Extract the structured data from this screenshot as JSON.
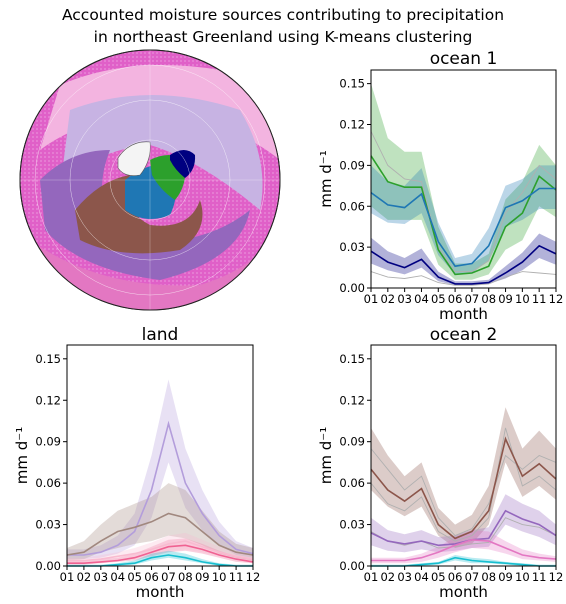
{
  "figure": {
    "title_line1": "Accounted moisture sources contributing to precipitation",
    "title_line2": "in northeast Greenland using K-means clustering"
  },
  "chart_data": [
    {
      "type": "line",
      "title": "ocean 1",
      "xlabel": "month",
      "ylabel": "mm d⁻¹",
      "categories": [
        "01",
        "02",
        "03",
        "04",
        "05",
        "06",
        "07",
        "08",
        "09",
        "10",
        "11",
        "12"
      ],
      "ylim": [
        0,
        0.16
      ],
      "yticks": [
        "0.00",
        "0.03",
        "0.06",
        "0.09",
        "0.12",
        "0.15"
      ],
      "series": [
        {
          "color": "#2ca02c",
          "values": [
            0.097,
            0.078,
            0.074,
            0.074,
            0.028,
            0.01,
            0.011,
            0.016,
            0.045,
            0.055,
            0.082,
            0.072
          ],
          "band_low": [
            0.06,
            0.05,
            0.05,
            0.05,
            0.017,
            0.006,
            0.006,
            0.01,
            0.028,
            0.035,
            0.06,
            0.052
          ],
          "band_high": [
            0.15,
            0.11,
            0.1,
            0.1,
            0.045,
            0.018,
            0.018,
            0.025,
            0.065,
            0.078,
            0.105,
            0.09
          ]
        },
        {
          "color": "#1f77b4",
          "values": [
            0.07,
            0.061,
            0.059,
            0.069,
            0.034,
            0.016,
            0.018,
            0.031,
            0.059,
            0.064,
            0.073,
            0.073
          ],
          "band_low": [
            0.055,
            0.048,
            0.047,
            0.055,
            0.024,
            0.01,
            0.011,
            0.02,
            0.045,
            0.05,
            0.058,
            0.058
          ],
          "band_high": [
            0.09,
            0.078,
            0.075,
            0.088,
            0.048,
            0.022,
            0.025,
            0.044,
            0.075,
            0.08,
            0.09,
            0.09
          ]
        },
        {
          "color": "#000080",
          "values": [
            0.027,
            0.019,
            0.015,
            0.021,
            0.008,
            0.003,
            0.003,
            0.004,
            0.011,
            0.019,
            0.031,
            0.025
          ],
          "band_low": [
            0.018,
            0.013,
            0.01,
            0.015,
            0.005,
            0.002,
            0.002,
            0.003,
            0.007,
            0.013,
            0.022,
            0.017
          ],
          "band_high": [
            0.037,
            0.027,
            0.022,
            0.029,
            0.012,
            0.005,
            0.005,
            0.006,
            0.016,
            0.026,
            0.04,
            0.034
          ]
        }
      ],
      "thin_lines": [
        {
          "color": "#b0b0b0",
          "values": [
            0.115,
            0.09,
            0.08,
            0.078,
            0.03,
            0.012,
            0.012,
            0.02,
            0.055,
            0.07,
            0.09,
            0.08
          ]
        },
        {
          "color": "#b0b0b0",
          "values": [
            0.012,
            0.008,
            0.007,
            0.009,
            0.004,
            0.002,
            0.002,
            0.003,
            0.008,
            0.012,
            0.011,
            0.01
          ]
        }
      ]
    },
    {
      "type": "line",
      "title": "land",
      "xlabel": "month",
      "ylabel": "mm d⁻¹",
      "categories": [
        "01",
        "02",
        "03",
        "04",
        "05",
        "06",
        "07",
        "08",
        "09",
        "10",
        "11",
        "12"
      ],
      "ylim": [
        0,
        0.16
      ],
      "yticks": [
        "0.00",
        "0.03",
        "0.06",
        "0.09",
        "0.12",
        "0.15"
      ],
      "series": [
        {
          "color": "#b39ddb",
          "values": [
            0.008,
            0.008,
            0.01,
            0.015,
            0.025,
            0.055,
            0.103,
            0.06,
            0.038,
            0.022,
            0.012,
            0.009
          ],
          "band_low": [
            0.005,
            0.005,
            0.006,
            0.009,
            0.015,
            0.035,
            0.075,
            0.042,
            0.026,
            0.015,
            0.008,
            0.006
          ],
          "band_high": [
            0.012,
            0.012,
            0.015,
            0.022,
            0.038,
            0.08,
            0.135,
            0.085,
            0.055,
            0.032,
            0.018,
            0.013
          ]
        },
        {
          "color": "#a1887f",
          "values": [
            0.008,
            0.01,
            0.018,
            0.025,
            0.028,
            0.032,
            0.038,
            0.035,
            0.025,
            0.015,
            0.01,
            0.008
          ],
          "band_low": [
            0.004,
            0.005,
            0.01,
            0.013,
            0.016,
            0.018,
            0.022,
            0.02,
            0.015,
            0.009,
            0.006,
            0.004
          ],
          "band_high": [
            0.013,
            0.018,
            0.03,
            0.04,
            0.045,
            0.05,
            0.06,
            0.055,
            0.04,
            0.025,
            0.016,
            0.013
          ]
        },
        {
          "color": "#f06292",
          "values": [
            0.002,
            0.002,
            0.003,
            0.004,
            0.006,
            0.01,
            0.014,
            0.015,
            0.012,
            0.008,
            0.005,
            0.003
          ],
          "band_low": [
            0.001,
            0.001,
            0.002,
            0.003,
            0.004,
            0.007,
            0.01,
            0.011,
            0.009,
            0.006,
            0.003,
            0.002
          ],
          "band_high": [
            0.004,
            0.004,
            0.005,
            0.006,
            0.009,
            0.014,
            0.019,
            0.02,
            0.016,
            0.011,
            0.007,
            0.005
          ]
        },
        {
          "color": "#f8bbd0",
          "values": [
            0.004,
            0.004,
            0.005,
            0.007,
            0.009,
            0.012,
            0.016,
            0.018,
            0.014,
            0.01,
            0.007,
            0.005
          ],
          "band_low": [
            0.002,
            0.002,
            0.003,
            0.004,
            0.006,
            0.008,
            0.011,
            0.012,
            0.01,
            0.007,
            0.004,
            0.003
          ],
          "band_high": [
            0.006,
            0.006,
            0.008,
            0.01,
            0.013,
            0.017,
            0.022,
            0.024,
            0.019,
            0.014,
            0.01,
            0.007
          ]
        },
        {
          "color": "#17becf",
          "values": [
            0.0,
            0.0,
            0.0,
            0.001,
            0.002,
            0.006,
            0.008,
            0.006,
            0.003,
            0.001,
            0.0,
            0.0
          ],
          "band_low": [
            0.0,
            0.0,
            0.0,
            0.0,
            0.001,
            0.004,
            0.006,
            0.004,
            0.002,
            0.0,
            0.0,
            0.0
          ],
          "band_high": [
            0.001,
            0.001,
            0.001,
            0.002,
            0.004,
            0.009,
            0.011,
            0.009,
            0.005,
            0.002,
            0.001,
            0.001
          ]
        }
      ],
      "thin_lines": []
    },
    {
      "type": "line",
      "title": "ocean 2",
      "xlabel": "month",
      "ylabel": "mm d⁻¹",
      "categories": [
        "01",
        "02",
        "03",
        "04",
        "05",
        "06",
        "07",
        "08",
        "09",
        "10",
        "11",
        "12"
      ],
      "ylim": [
        0,
        0.16
      ],
      "yticks": [
        "0.00",
        "0.03",
        "0.06",
        "0.09",
        "0.12",
        "0.15"
      ],
      "series": [
        {
          "color": "#8c564b",
          "values": [
            0.07,
            0.055,
            0.047,
            0.056,
            0.03,
            0.02,
            0.025,
            0.04,
            0.092,
            0.065,
            0.074,
            0.063
          ],
          "band_low": [
            0.055,
            0.043,
            0.036,
            0.043,
            0.022,
            0.013,
            0.016,
            0.03,
            0.075,
            0.05,
            0.058,
            0.048
          ],
          "band_high": [
            0.1,
            0.08,
            0.065,
            0.075,
            0.042,
            0.03,
            0.037,
            0.058,
            0.115,
            0.085,
            0.098,
            0.085
          ]
        },
        {
          "color": "#9467bd",
          "values": [
            0.024,
            0.018,
            0.016,
            0.018,
            0.015,
            0.016,
            0.019,
            0.02,
            0.04,
            0.034,
            0.03,
            0.022
          ],
          "band_low": [
            0.015,
            0.011,
            0.01,
            0.012,
            0.01,
            0.011,
            0.013,
            0.014,
            0.03,
            0.025,
            0.021,
            0.015
          ],
          "band_high": [
            0.035,
            0.026,
            0.023,
            0.026,
            0.021,
            0.022,
            0.026,
            0.028,
            0.052,
            0.045,
            0.04,
            0.03
          ]
        },
        {
          "color": "#e377c2",
          "values": [
            0.004,
            0.004,
            0.004,
            0.006,
            0.01,
            0.015,
            0.019,
            0.018,
            0.013,
            0.008,
            0.006,
            0.005
          ],
          "band_low": [
            0.002,
            0.002,
            0.002,
            0.003,
            0.006,
            0.01,
            0.013,
            0.012,
            0.009,
            0.005,
            0.004,
            0.003
          ],
          "band_high": [
            0.006,
            0.006,
            0.006,
            0.009,
            0.014,
            0.021,
            0.026,
            0.025,
            0.018,
            0.012,
            0.009,
            0.007
          ]
        },
        {
          "color": "#17becf",
          "values": [
            0.0,
            0.0,
            0.0,
            0.001,
            0.002,
            0.006,
            0.004,
            0.003,
            0.002,
            0.001,
            0.0,
            0.0
          ],
          "band_low": [
            0.0,
            0.0,
            0.0,
            0.0,
            0.001,
            0.004,
            0.002,
            0.002,
            0.001,
            0.0,
            0.0,
            0.0
          ],
          "band_high": [
            0.001,
            0.001,
            0.001,
            0.002,
            0.003,
            0.008,
            0.006,
            0.005,
            0.003,
            0.002,
            0.001,
            0.001
          ]
        }
      ],
      "thin_lines": [
        {
          "color": "#b0b0b0",
          "values": [
            0.085,
            0.07,
            0.055,
            0.065,
            0.035,
            0.022,
            0.027,
            0.045,
            0.08,
            0.07,
            0.08,
            0.075
          ]
        },
        {
          "color": "#b0b0b0",
          "values": [
            0.06,
            0.045,
            0.04,
            0.05,
            0.025,
            0.018,
            0.022,
            0.035,
            0.1,
            0.058,
            0.065,
            0.055
          ]
        },
        {
          "color": "#b0b0b0",
          "values": [
            0.025,
            0.018,
            0.015,
            0.018,
            0.013,
            0.014,
            0.016,
            0.017,
            0.035,
            0.03,
            0.028,
            0.022
          ]
        }
      ]
    }
  ],
  "map": {
    "type": "polar-stereographic cluster map",
    "cluster_colors": {
      "ocean1_green": "#2ca02c",
      "ocean1_blue": "#1f77b4",
      "ocean1_navy": "#000080",
      "land_brown": "#8c564b",
      "land_purple": "#9467bd",
      "light_purple": "#b39ddb",
      "pink": "#e377c2",
      "light_pink": "#f3b4e0",
      "background_magenta": "#e060c8"
    }
  }
}
